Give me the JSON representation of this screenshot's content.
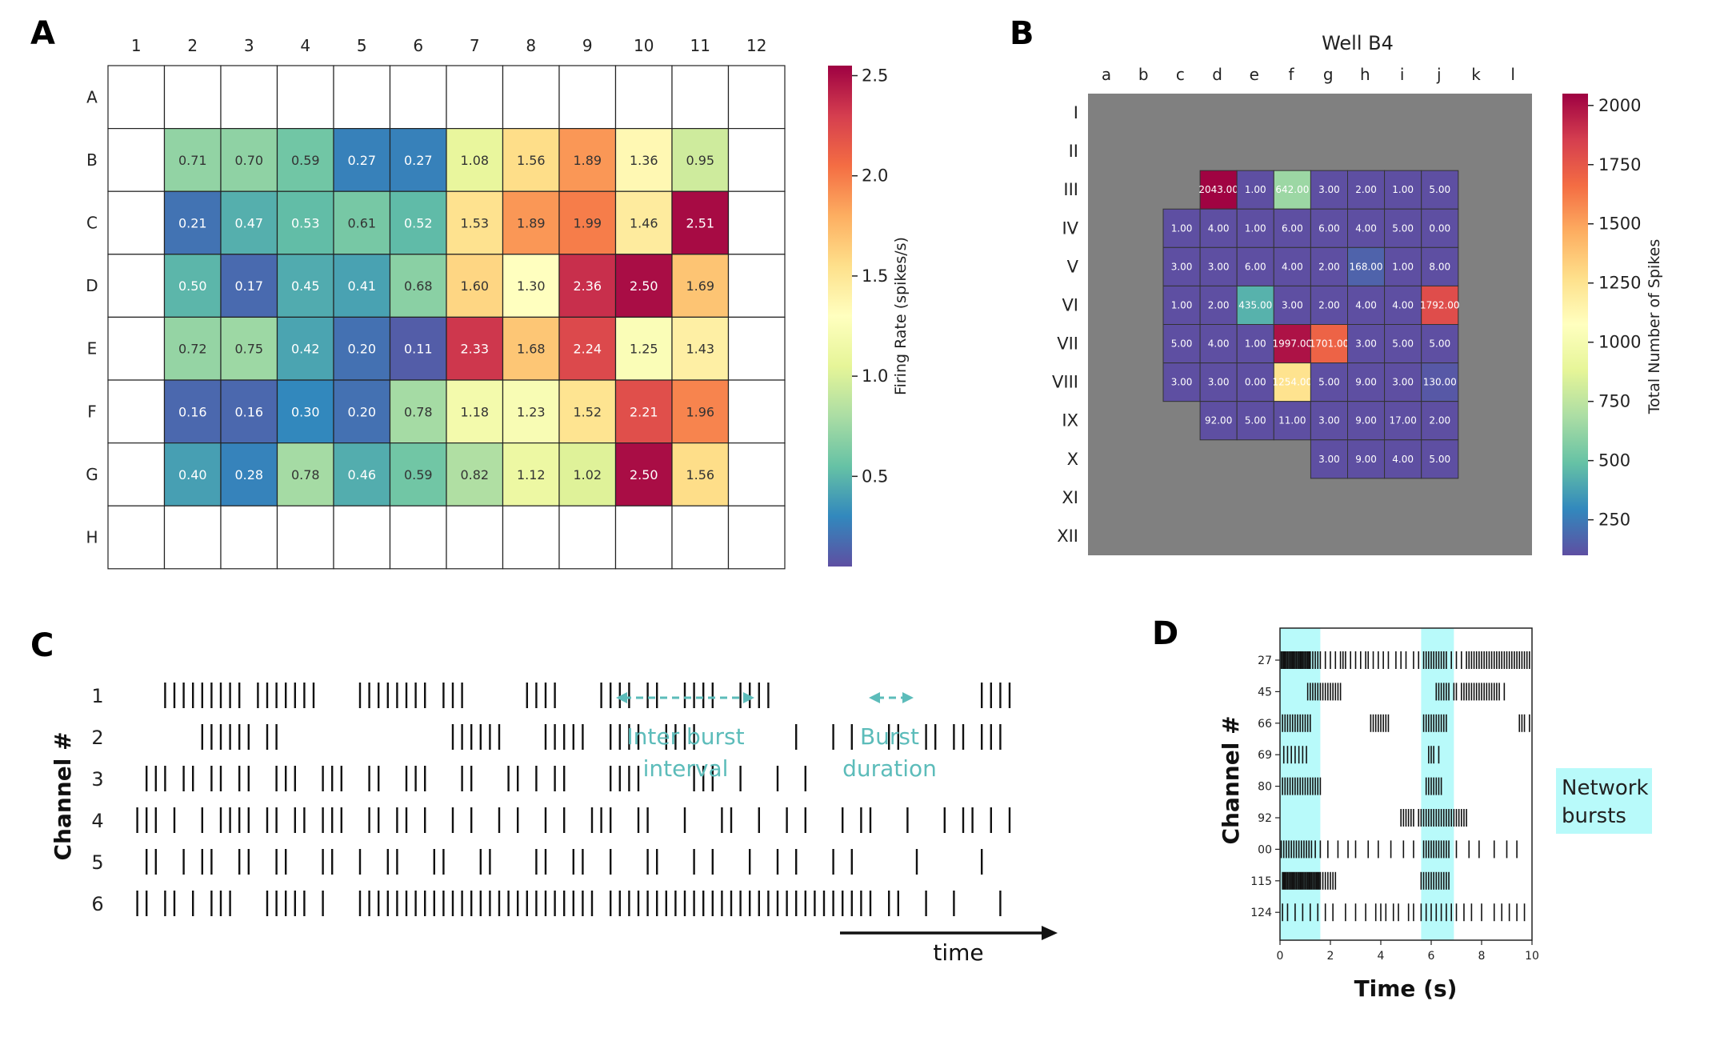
{
  "chart_data": [
    {
      "panel": "A",
      "type": "heatmap",
      "columns": [
        "1",
        "2",
        "3",
        "4",
        "5",
        "6",
        "7",
        "8",
        "9",
        "10",
        "11",
        "12"
      ],
      "rows": [
        "A",
        "B",
        "C",
        "D",
        "E",
        "F",
        "G",
        "H"
      ],
      "values": [
        [
          null,
          null,
          null,
          null,
          null,
          null,
          null,
          null,
          null,
          null,
          null,
          null
        ],
        [
          null,
          0.71,
          0.7,
          0.59,
          0.27,
          0.27,
          1.08,
          1.56,
          1.89,
          1.36,
          0.95,
          null
        ],
        [
          null,
          0.21,
          0.47,
          0.53,
          0.61,
          0.52,
          1.53,
          1.89,
          1.99,
          1.46,
          2.51,
          null
        ],
        [
          null,
          0.5,
          0.17,
          0.45,
          0.41,
          0.68,
          1.6,
          1.3,
          2.36,
          2.5,
          1.69,
          null
        ],
        [
          null,
          0.72,
          0.75,
          0.42,
          0.2,
          0.11,
          2.33,
          1.68,
          2.24,
          1.25,
          1.43,
          null
        ],
        [
          null,
          0.16,
          0.16,
          0.3,
          0.2,
          0.78,
          1.18,
          1.23,
          1.52,
          2.21,
          1.96,
          null
        ],
        [
          null,
          0.4,
          0.28,
          0.78,
          0.46,
          0.59,
          0.82,
          1.12,
          1.02,
          2.5,
          1.56,
          null
        ],
        [
          null,
          null,
          null,
          null,
          null,
          null,
          null,
          null,
          null,
          null,
          null,
          null
        ]
      ],
      "colorbar": {
        "label": "Firing Rate (spikes/s)",
        "ticks": [
          "0.5",
          "1.0",
          "1.5",
          "2.0",
          "2.5"
        ],
        "range": [
          0.05,
          2.55
        ],
        "colormap": "Spectral_r"
      }
    },
    {
      "panel": "B",
      "type": "heatmap",
      "title": "Well B4",
      "columns": [
        "a",
        "b",
        "c",
        "d",
        "e",
        "f",
        "g",
        "h",
        "i",
        "j",
        "k",
        "l"
      ],
      "rows": [
        "I",
        "II",
        "III",
        "IV",
        "V",
        "VI",
        "VII",
        "VIII",
        "IX",
        "X",
        "XI",
        "XII"
      ],
      "values": [
        [
          null,
          null,
          null,
          null,
          null,
          null,
          null,
          null,
          null,
          null,
          null,
          null
        ],
        [
          null,
          null,
          null,
          null,
          null,
          null,
          null,
          null,
          null,
          null,
          null,
          null
        ],
        [
          null,
          null,
          null,
          2043.0,
          1.0,
          642.0,
          3.0,
          2.0,
          1.0,
          5.0,
          null,
          null
        ],
        [
          null,
          null,
          1.0,
          4.0,
          1.0,
          6.0,
          6.0,
          4.0,
          5.0,
          0.0,
          null,
          null
        ],
        [
          null,
          null,
          3.0,
          3.0,
          6.0,
          4.0,
          2.0,
          168.0,
          1.0,
          8.0,
          null,
          null
        ],
        [
          null,
          null,
          1.0,
          2.0,
          435.0,
          3.0,
          2.0,
          4.0,
          4.0,
          1792.0,
          null,
          null
        ],
        [
          null,
          null,
          5.0,
          4.0,
          1.0,
          1997.0,
          1701.0,
          3.0,
          5.0,
          5.0,
          null,
          null
        ],
        [
          null,
          null,
          3.0,
          3.0,
          0.0,
          1254.0,
          5.0,
          9.0,
          3.0,
          130.0,
          null,
          null
        ],
        [
          null,
          null,
          null,
          92.0,
          5.0,
          11.0,
          3.0,
          9.0,
          17.0,
          2.0,
          null,
          null
        ],
        [
          null,
          null,
          null,
          null,
          null,
          null,
          3.0,
          9.0,
          4.0,
          5.0,
          null,
          null
        ],
        [
          null,
          null,
          null,
          null,
          null,
          null,
          null,
          null,
          null,
          null,
          null,
          null
        ],
        [
          null,
          null,
          null,
          null,
          null,
          null,
          null,
          null,
          null,
          null,
          null,
          null
        ]
      ],
      "colorbar": {
        "label": "Total Number of Spikes",
        "ticks": [
          "250",
          "500",
          "750",
          "1000",
          "1250",
          "1500",
          "1750",
          "2000"
        ],
        "range": [
          100,
          2050
        ],
        "colormap": "Spectral_r"
      },
      "background_color": "#808080"
    },
    {
      "panel": "C",
      "type": "raster",
      "ylabel": "Channel #",
      "channels": [
        "1",
        "2",
        "3",
        "4",
        "5",
        "6"
      ],
      "annotations": [
        {
          "lines": [
            "Inter burst",
            "interval"
          ]
        },
        {
          "lines": [
            "Burst",
            "duration"
          ]
        }
      ],
      "xlabel": "time",
      "spikes": [
        [
          0.04,
          0.05,
          0.06,
          0.07,
          0.08,
          0.09,
          0.1,
          0.11,
          0.12,
          0.14,
          0.15,
          0.16,
          0.17,
          0.18,
          0.19,
          0.2,
          0.25,
          0.26,
          0.27,
          0.28,
          0.29,
          0.3,
          0.31,
          0.32,
          0.34,
          0.35,
          0.36,
          0.43,
          0.44,
          0.45,
          0.46,
          0.51,
          0.52,
          0.53,
          0.54,
          0.56,
          0.57,
          0.6,
          0.61,
          0.62,
          0.63,
          0.66,
          0.67,
          0.68,
          0.69,
          0.92,
          0.93,
          0.94,
          0.95
        ],
        [
          0.08,
          0.09,
          0.1,
          0.11,
          0.12,
          0.13,
          0.15,
          0.16,
          0.35,
          0.36,
          0.37,
          0.38,
          0.39,
          0.4,
          0.45,
          0.46,
          0.47,
          0.48,
          0.49,
          0.52,
          0.53,
          0.54,
          0.55,
          0.58,
          0.59,
          0.6,
          0.61,
          0.72,
          0.76,
          0.78,
          0.82,
          0.83,
          0.86,
          0.87,
          0.89,
          0.9,
          0.92,
          0.93,
          0.94
        ],
        [
          0.02,
          0.03,
          0.04,
          0.06,
          0.07,
          0.09,
          0.1,
          0.12,
          0.13,
          0.16,
          0.17,
          0.18,
          0.21,
          0.22,
          0.23,
          0.26,
          0.27,
          0.3,
          0.31,
          0.32,
          0.36,
          0.37,
          0.41,
          0.42,
          0.44,
          0.46,
          0.47,
          0.52,
          0.53,
          0.54,
          0.55,
          0.61,
          0.62,
          0.63,
          0.66,
          0.7,
          0.73
        ],
        [
          0.01,
          0.02,
          0.03,
          0.05,
          0.08,
          0.1,
          0.11,
          0.12,
          0.13,
          0.15,
          0.16,
          0.18,
          0.19,
          0.21,
          0.22,
          0.23,
          0.26,
          0.27,
          0.29,
          0.3,
          0.32,
          0.35,
          0.37,
          0.4,
          0.42,
          0.45,
          0.47,
          0.5,
          0.51,
          0.52,
          0.55,
          0.56,
          0.6,
          0.64,
          0.65,
          0.68,
          0.71,
          0.73,
          0.77,
          0.79,
          0.8,
          0.84,
          0.88,
          0.9,
          0.91,
          0.93,
          0.95
        ],
        [
          0.02,
          0.03,
          0.06,
          0.08,
          0.09,
          0.12,
          0.13,
          0.16,
          0.17,
          0.21,
          0.22,
          0.25,
          0.28,
          0.29,
          0.33,
          0.34,
          0.38,
          0.39,
          0.44,
          0.45,
          0.48,
          0.49,
          0.52,
          0.56,
          0.57,
          0.61,
          0.63,
          0.67,
          0.7,
          0.72,
          0.76,
          0.78,
          0.85,
          0.92
        ],
        [
          0.01,
          0.02,
          0.04,
          0.05,
          0.07,
          0.09,
          0.1,
          0.11,
          0.15,
          0.16,
          0.17,
          0.18,
          0.19,
          0.21,
          0.25,
          0.26,
          0.27,
          0.28,
          0.29,
          0.3,
          0.31,
          0.32,
          0.33,
          0.34,
          0.35,
          0.36,
          0.37,
          0.38,
          0.39,
          0.4,
          0.41,
          0.42,
          0.43,
          0.44,
          0.45,
          0.46,
          0.47,
          0.48,
          0.49,
          0.5,
          0.52,
          0.53,
          0.54,
          0.55,
          0.56,
          0.57,
          0.58,
          0.59,
          0.6,
          0.61,
          0.62,
          0.63,
          0.64,
          0.65,
          0.66,
          0.67,
          0.68,
          0.69,
          0.7,
          0.71,
          0.72,
          0.73,
          0.74,
          0.75,
          0.76,
          0.77,
          0.78,
          0.79,
          0.8,
          0.82,
          0.83,
          0.86,
          0.89,
          0.94
        ]
      ]
    },
    {
      "panel": "D",
      "type": "raster",
      "ylabel": "Channel #",
      "xlabel": "Time (s)",
      "xlim": [
        0,
        10
      ],
      "xticks": [
        "0",
        "2",
        "4",
        "6",
        "8",
        "10"
      ],
      "channels": [
        "27",
        "45",
        "66",
        "69",
        "80",
        "92",
        "00",
        "115",
        "124"
      ],
      "network_bursts": [
        [
          0.0,
          1.6
        ],
        [
          5.6,
          6.9
        ]
      ],
      "legend": "Network bursts",
      "highlight_color": "#b8fafa",
      "spikes": [
        [
          0.05,
          0.1,
          0.15,
          0.2,
          0.25,
          0.3,
          0.35,
          0.4,
          0.45,
          0.5,
          0.55,
          0.6,
          0.65,
          0.7,
          0.75,
          0.8,
          0.85,
          0.9,
          0.95,
          1.0,
          1.05,
          1.1,
          1.15,
          1.2,
          1.3,
          1.4,
          1.5,
          1.6,
          1.8,
          2.0,
          2.2,
          2.4,
          2.5,
          2.6,
          2.8,
          3.0,
          3.2,
          3.4,
          3.5,
          3.7,
          3.9,
          4.1,
          4.3,
          4.6,
          4.8,
          5.0,
          5.3,
          5.5,
          5.7,
          5.8,
          5.9,
          6.0,
          6.1,
          6.2,
          6.3,
          6.4,
          6.5,
          6.6,
          6.8,
          7.0,
          7.2,
          7.4,
          7.5,
          7.6,
          7.7,
          7.8,
          7.9,
          8.0,
          8.1,
          8.2,
          8.3,
          8.4,
          8.5,
          8.6,
          8.7,
          8.8,
          8.9,
          9.0,
          9.1,
          9.2,
          9.3,
          9.4,
          9.5,
          9.6,
          9.7,
          9.8,
          9.9
        ],
        [
          1.1,
          1.2,
          1.3,
          1.4,
          1.5,
          1.6,
          1.7,
          1.8,
          1.9,
          2.0,
          2.1,
          2.2,
          2.3,
          2.4,
          6.2,
          6.3,
          6.4,
          6.5,
          6.6,
          6.7,
          6.9,
          7.0,
          7.2,
          7.3,
          7.4,
          7.5,
          7.6,
          7.7,
          7.8,
          7.9,
          8.0,
          8.1,
          8.2,
          8.3,
          8.4,
          8.5,
          8.6,
          8.7,
          8.9
        ],
        [
          0.1,
          0.2,
          0.3,
          0.4,
          0.5,
          0.6,
          0.7,
          0.8,
          0.9,
          1.0,
          1.1,
          1.2,
          3.6,
          3.7,
          3.8,
          3.9,
          4.0,
          4.1,
          4.2,
          4.3,
          5.7,
          5.8,
          5.9,
          6.0,
          6.1,
          6.2,
          6.3,
          6.4,
          6.5,
          6.6,
          9.5,
          9.6,
          9.7,
          9.9
        ],
        [
          0.15,
          0.3,
          0.45,
          0.6,
          0.75,
          0.9,
          1.05,
          5.9,
          6.0,
          6.1,
          6.3
        ],
        [
          0.1,
          0.2,
          0.3,
          0.4,
          0.5,
          0.6,
          0.7,
          0.8,
          0.9,
          1.0,
          1.1,
          1.2,
          1.3,
          1.4,
          1.5,
          1.6,
          5.8,
          5.9,
          6.0,
          6.1,
          6.2,
          6.3,
          6.4
        ],
        [
          4.8,
          4.9,
          5.0,
          5.1,
          5.2,
          5.3,
          5.5,
          5.6,
          5.7,
          5.8,
          5.9,
          6.0,
          6.1,
          6.2,
          6.3,
          6.4,
          6.5,
          6.6,
          6.7,
          6.8,
          6.9,
          7.0,
          7.1,
          7.2,
          7.3,
          7.4
        ],
        [
          0.05,
          0.15,
          0.25,
          0.35,
          0.45,
          0.55,
          0.65,
          0.75,
          0.85,
          0.95,
          1.05,
          1.15,
          1.25,
          1.4,
          1.6,
          1.9,
          2.3,
          2.7,
          3.0,
          3.5,
          3.9,
          4.4,
          4.9,
          5.3,
          5.7,
          5.8,
          5.9,
          6.0,
          6.1,
          6.2,
          6.3,
          6.4,
          6.5,
          6.6,
          6.7,
          7.0,
          7.5,
          7.9,
          8.5,
          9.0,
          9.4
        ],
        [
          0.1,
          0.15,
          0.2,
          0.25,
          0.3,
          0.35,
          0.4,
          0.45,
          0.5,
          0.55,
          0.6,
          0.65,
          0.7,
          0.75,
          0.8,
          0.85,
          0.9,
          0.95,
          1.0,
          1.05,
          1.1,
          1.15,
          1.2,
          1.25,
          1.3,
          1.35,
          1.4,
          1.45,
          1.5,
          1.55,
          1.6,
          1.7,
          1.8,
          1.9,
          2.0,
          2.1,
          2.2,
          5.6,
          5.7,
          5.8,
          5.9,
          6.0,
          6.1,
          6.2,
          6.3,
          6.4,
          6.5,
          6.6,
          6.7
        ],
        [
          0.1,
          0.3,
          0.6,
          0.9,
          1.2,
          1.5,
          1.8,
          2.1,
          2.6,
          3.0,
          3.4,
          3.8,
          4.0,
          4.2,
          4.5,
          4.7,
          5.1,
          5.3,
          5.6,
          5.8,
          6.0,
          6.2,
          6.4,
          6.6,
          6.8,
          7.0,
          7.3,
          7.6,
          8.0,
          8.5,
          8.8,
          9.1,
          9.4,
          9.7
        ]
      ]
    }
  ],
  "panel_letters": [
    "A",
    "B",
    "C",
    "D"
  ]
}
